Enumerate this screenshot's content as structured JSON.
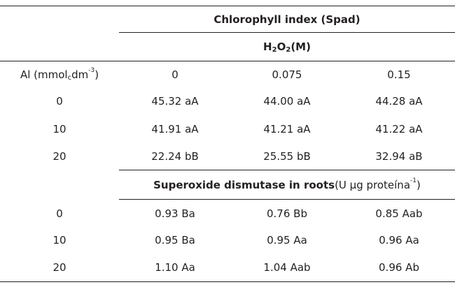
{
  "table": {
    "chlorophyll_header": "Chlorophyll index (Spad)",
    "treatment_header": {
      "h": "H",
      "sub1": "2",
      "o": "O",
      "sub2": "2",
      "unit": " (M)"
    },
    "row_header": {
      "prefix": "Al (mmol",
      "sub": "c",
      "mid": " dm",
      "sup": "-3",
      "suffix": ")"
    },
    "h2o2_levels": [
      "0",
      "0.075",
      "0.15"
    ],
    "chlorophyll_rows": [
      {
        "al": "0",
        "values": [
          "45.32 aA",
          "44.00 aA",
          "44.28 aA"
        ]
      },
      {
        "al": "10",
        "values": [
          "41.91 aA",
          "41.21 aA",
          "41.22 aA"
        ]
      },
      {
        "al": "20",
        "values": [
          "22.24 bB",
          "25.55 bB",
          "32.94 aB"
        ]
      }
    ],
    "sod_header": {
      "bold": "Superoxide dismutase in roots",
      "unit_prefix": " (U µg proteína",
      "unit_sup": "-1",
      "unit_suffix": ")"
    },
    "sod_rows": [
      {
        "al": "0",
        "values": [
          "0.93 Ba",
          "0.76 Bb",
          "0.85 Aab"
        ]
      },
      {
        "al": "10",
        "values": [
          "0.95 Ba",
          "0.95 Aa",
          "0.96 Aa"
        ]
      },
      {
        "al": "20",
        "values": [
          "1.10 Aa",
          "1.04 Aab",
          "0.96 Ab"
        ]
      }
    ]
  }
}
